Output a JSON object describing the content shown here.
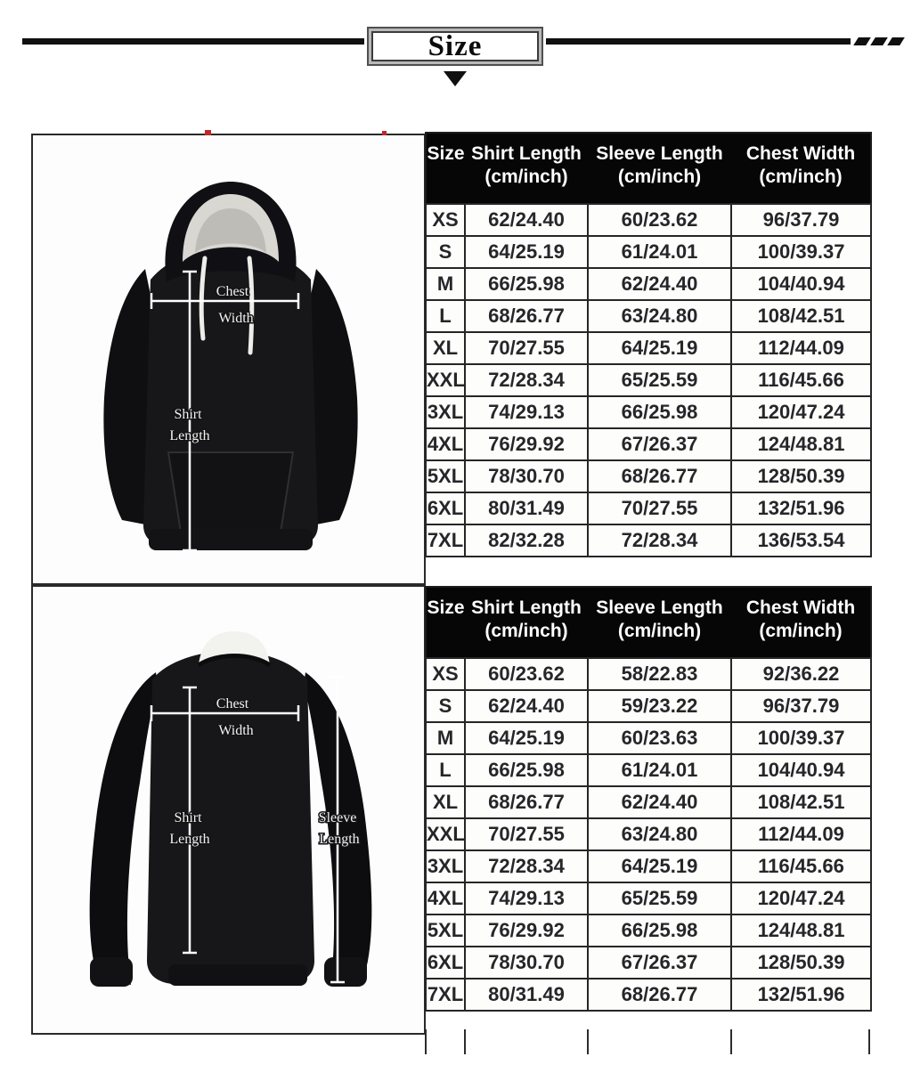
{
  "decor": {
    "title": "Size"
  },
  "colors": {
    "accent_red": "#c0272d",
    "table_header_bg": "#060606",
    "table_text": "#26262a",
    "garment_black": "#17171a",
    "hood_lining": "#d8d7d2"
  },
  "diagrams": {
    "hoodie": {
      "chest_width_label": [
        "Chest",
        "Width"
      ],
      "shirt_length_label": [
        "Shirt",
        "Length"
      ]
    },
    "sweatshirt": {
      "chest_width_label": [
        "Chest",
        "Width"
      ],
      "shirt_length_label": [
        "Shirt",
        "Length"
      ],
      "sleeve_length_label": [
        "Sleeve",
        "Length"
      ]
    }
  },
  "chart_data": [
    {
      "type": "table",
      "garment": "hoodie",
      "columns": [
        {
          "label": "Size",
          "sub": ""
        },
        {
          "label": "Shirt Length",
          "sub": "(cm/inch)"
        },
        {
          "label": "Sleeve Length",
          "sub": "(cm/inch)"
        },
        {
          "label": "Chest Width",
          "sub": "(cm/inch)"
        }
      ],
      "rows": [
        [
          "XS",
          "62/24.40",
          "60/23.62",
          "96/37.79"
        ],
        [
          "S",
          "64/25.19",
          "61/24.01",
          "100/39.37"
        ],
        [
          "M",
          "66/25.98",
          "62/24.40",
          "104/40.94"
        ],
        [
          "L",
          "68/26.77",
          "63/24.80",
          "108/42.51"
        ],
        [
          "XL",
          "70/27.55",
          "64/25.19",
          "112/44.09"
        ],
        [
          "XXL",
          "72/28.34",
          "65/25.59",
          "116/45.66"
        ],
        [
          "3XL",
          "74/29.13",
          "66/25.98",
          "120/47.24"
        ],
        [
          "4XL",
          "76/29.92",
          "67/26.37",
          "124/48.81"
        ],
        [
          "5XL",
          "78/30.70",
          "68/26.77",
          "128/50.39"
        ],
        [
          "6XL",
          "80/31.49",
          "70/27.55",
          "132/51.96"
        ],
        [
          "7XL",
          "82/32.28",
          "72/28.34",
          "136/53.54"
        ]
      ]
    },
    {
      "type": "table",
      "garment": "sweatshirt",
      "columns": [
        {
          "label": "Size",
          "sub": ""
        },
        {
          "label": "Shirt Length",
          "sub": "(cm/inch)"
        },
        {
          "label": "Sleeve Length",
          "sub": "(cm/inch)"
        },
        {
          "label": "Chest Width",
          "sub": "(cm/inch)"
        }
      ],
      "rows": [
        [
          "XS",
          "60/23.62",
          "58/22.83",
          "92/36.22"
        ],
        [
          "S",
          "62/24.40",
          "59/23.22",
          "96/37.79"
        ],
        [
          "M",
          "64/25.19",
          "60/23.63",
          "100/39.37"
        ],
        [
          "L",
          "66/25.98",
          "61/24.01",
          "104/40.94"
        ],
        [
          "XL",
          "68/26.77",
          "62/24.40",
          "108/42.51"
        ],
        [
          "XXL",
          "70/27.55",
          "63/24.80",
          "112/44.09"
        ],
        [
          "3XL",
          "72/28.34",
          "64/25.19",
          "116/45.66"
        ],
        [
          "4XL",
          "74/29.13",
          "65/25.59",
          "120/47.24"
        ],
        [
          "5XL",
          "76/29.92",
          "66/25.98",
          "124/48.81"
        ],
        [
          "6XL",
          "78/30.70",
          "67/26.37",
          "128/50.39"
        ],
        [
          "7XL",
          "80/31.49",
          "68/26.77",
          "132/51.96"
        ]
      ]
    }
  ]
}
